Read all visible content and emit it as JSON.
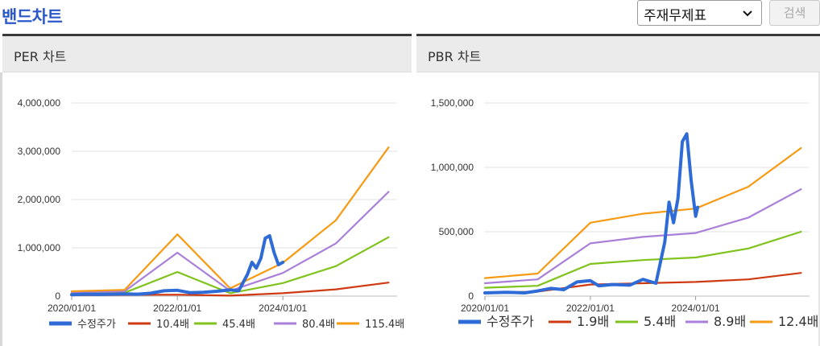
{
  "header": {
    "title": "밴드차트",
    "select_value": "주재무제표",
    "search_label": "검색"
  },
  "chart_data": [
    {
      "panel_title": "PER 차트",
      "type": "line",
      "x_ticks": [
        "2020/01/01",
        "2022/01/01",
        "2024/01/01"
      ],
      "y_ticks": [
        "0",
        "1,000,000",
        "2,000,000",
        "3,000,000",
        "4,000,000"
      ],
      "ylim": [
        0,
        4000000
      ],
      "grid": true,
      "legend_position": "bottom",
      "series": [
        {
          "name": "수정주가",
          "color": "#2e6bd6",
          "points": [
            [
              "2020/01/01",
              30000
            ],
            [
              "2020/04/01",
              40000
            ],
            [
              "2020/07/01",
              35000
            ],
            [
              "2020/10/01",
              40000
            ],
            [
              "2021/01/01",
              45000
            ],
            [
              "2021/04/01",
              40000
            ],
            [
              "2021/07/01",
              60000
            ],
            [
              "2021/10/01",
              110000
            ],
            [
              "2022/01/01",
              120000
            ],
            [
              "2022/04/01",
              70000
            ],
            [
              "2022/07/01",
              80000
            ],
            [
              "2022/10/01",
              100000
            ],
            [
              "2023/01/01",
              130000
            ],
            [
              "2023/03/01",
              110000
            ],
            [
              "2023/05/01",
              450000
            ],
            [
              "2023/06/01",
              700000
            ],
            [
              "2023/07/01",
              580000
            ],
            [
              "2023/08/01",
              780000
            ],
            [
              "2023/09/01",
              1200000
            ],
            [
              "2023/10/01",
              1250000
            ],
            [
              "2023/11/01",
              900000
            ],
            [
              "2023/12/01",
              650000
            ],
            [
              "2024/01/01",
              700000
            ]
          ]
        },
        {
          "name": "10.4배",
          "color": "#cf3a12",
          "points": [
            [
              "2020/01/01",
              20000
            ],
            [
              "2021/01/01",
              25000
            ],
            [
              "2022/01/01",
              30000
            ],
            [
              "2023/01/01",
              10000
            ],
            [
              "2024/01/01",
              60000
            ],
            [
              "2025/01/01",
              140000
            ],
            [
              "2026/01/01",
              280000
            ]
          ]
        },
        {
          "name": "45.4배",
          "color": "#7fc31c",
          "points": [
            [
              "2020/01/01",
              60000
            ],
            [
              "2021/01/01",
              70000
            ],
            [
              "2022/01/01",
              500000
            ],
            [
              "2023/01/01",
              60000
            ],
            [
              "2024/01/01",
              270000
            ],
            [
              "2025/01/01",
              620000
            ],
            [
              "2026/01/01",
              1220000
            ]
          ]
        },
        {
          "name": "80.4배",
          "color": "#a97fd9",
          "points": [
            [
              "2020/01/01",
              80000
            ],
            [
              "2021/01/01",
              100000
            ],
            [
              "2022/01/01",
              900000
            ],
            [
              "2023/01/01",
              110000
            ],
            [
              "2024/01/01",
              480000
            ],
            [
              "2025/01/01",
              1090000
            ],
            [
              "2026/01/01",
              2160000
            ]
          ]
        },
        {
          "name": "115.4배",
          "color": "#f59a12",
          "points": [
            [
              "2020/01/01",
              100000
            ],
            [
              "2021/01/01",
              130000
            ],
            [
              "2022/01/01",
              1280000
            ],
            [
              "2023/01/01",
              160000
            ],
            [
              "2024/01/01",
              690000
            ],
            [
              "2025/01/01",
              1570000
            ],
            [
              "2026/01/01",
              3080000
            ]
          ]
        }
      ]
    },
    {
      "panel_title": "PBR 차트",
      "type": "line",
      "x_ticks": [
        "2020/01/01",
        "2022/01/01",
        "2024/01/01"
      ],
      "y_ticks": [
        "0",
        "500,000",
        "1,000,000",
        "1,500,000"
      ],
      "ylim": [
        0,
        1500000
      ],
      "grid": true,
      "legend_position": "bottom",
      "series": [
        {
          "name": "수정주가",
          "color": "#2e6bd6",
          "points": [
            [
              "2020/01/01",
              25000
            ],
            [
              "2020/06/01",
              30000
            ],
            [
              "2020/10/01",
              25000
            ],
            [
              "2021/01/01",
              40000
            ],
            [
              "2021/04/01",
              60000
            ],
            [
              "2021/07/01",
              50000
            ],
            [
              "2021/10/01",
              110000
            ],
            [
              "2022/01/01",
              120000
            ],
            [
              "2022/03/01",
              80000
            ],
            [
              "2022/06/01",
              90000
            ],
            [
              "2022/10/01",
              85000
            ],
            [
              "2023/01/01",
              130000
            ],
            [
              "2023/04/01",
              100000
            ],
            [
              "2023/06/01",
              420000
            ],
            [
              "2023/07/01",
              730000
            ],
            [
              "2023/08/01",
              570000
            ],
            [
              "2023/09/01",
              760000
            ],
            [
              "2023/10/01",
              1200000
            ],
            [
              "2023/11/01",
              1260000
            ],
            [
              "2023/12/01",
              900000
            ],
            [
              "2024/01/01",
              620000
            ],
            [
              "2024/01/15",
              690000
            ]
          ]
        },
        {
          "name": "1.9배",
          "color": "#cf3a12",
          "points": [
            [
              "2020/01/01",
              25000
            ],
            [
              "2021/01/01",
              35000
            ],
            [
              "2022/01/01",
              90000
            ],
            [
              "2023/01/01",
              100000
            ],
            [
              "2024/01/01",
              110000
            ],
            [
              "2025/01/01",
              130000
            ],
            [
              "2026/01/01",
              180000
            ]
          ]
        },
        {
          "name": "5.4배",
          "color": "#7fc31c",
          "points": [
            [
              "2020/01/01",
              65000
            ],
            [
              "2021/01/01",
              80000
            ],
            [
              "2022/01/01",
              250000
            ],
            [
              "2023/01/01",
              280000
            ],
            [
              "2024/01/01",
              300000
            ],
            [
              "2025/01/01",
              370000
            ],
            [
              "2026/01/01",
              500000
            ]
          ]
        },
        {
          "name": "8.9배",
          "color": "#a97fd9",
          "points": [
            [
              "2020/01/01",
              100000
            ],
            [
              "2021/01/01",
              130000
            ],
            [
              "2022/01/01",
              410000
            ],
            [
              "2023/01/01",
              460000
            ],
            [
              "2024/01/01",
              490000
            ],
            [
              "2025/01/01",
              610000
            ],
            [
              "2026/01/01",
              830000
            ]
          ]
        },
        {
          "name": "12.4배",
          "color": "#f59a12",
          "points": [
            [
              "2020/01/01",
              140000
            ],
            [
              "2021/01/01",
              175000
            ],
            [
              "2022/01/01",
              570000
            ],
            [
              "2023/01/01",
              640000
            ],
            [
              "2024/01/01",
              680000
            ],
            [
              "2025/01/01",
              850000
            ],
            [
              "2026/01/01",
              1150000
            ]
          ]
        }
      ]
    }
  ]
}
